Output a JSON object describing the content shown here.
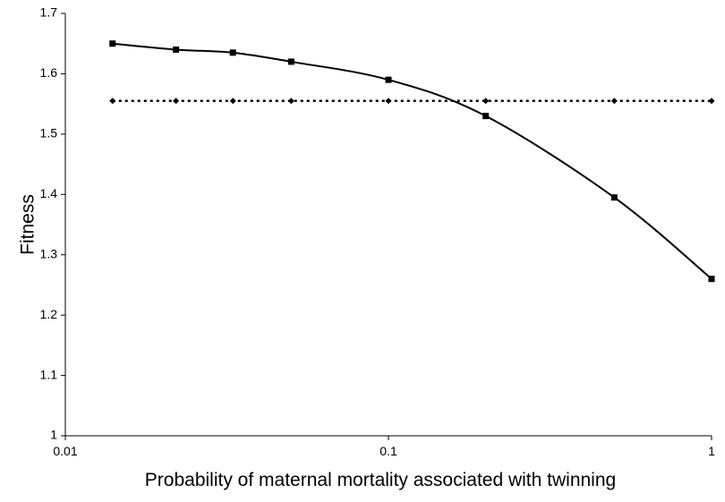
{
  "chart_data": {
    "type": "line",
    "x_label": "Probability of maternal mortality associated with twinning",
    "y_label": "Fitness",
    "x_scale": "log",
    "xlim": [
      0.01,
      1
    ],
    "xticks": [
      0.01,
      0.1,
      1
    ],
    "ylim": [
      1,
      1.7
    ],
    "yticks": [
      1,
      1.1,
      1.2,
      1.3,
      1.4,
      1.5,
      1.6,
      1.7
    ],
    "series": [
      {
        "color": "#000000",
        "style": "solid",
        "marker": "square",
        "x": [
          0.014,
          0.022,
          0.033,
          0.05,
          0.1,
          0.2,
          0.5,
          1
        ],
        "values": [
          1.65,
          1.64,
          1.635,
          1.62,
          1.59,
          1.53,
          1.395,
          1.26
        ]
      },
      {
        "color": "#000000",
        "style": "dotted",
        "marker": "diamond",
        "x": [
          0.014,
          0.022,
          0.033,
          0.05,
          0.1,
          0.2,
          0.5,
          1
        ],
        "values": [
          1.555,
          1.555,
          1.555,
          1.555,
          1.555,
          1.555,
          1.555,
          1.555
        ]
      }
    ]
  }
}
